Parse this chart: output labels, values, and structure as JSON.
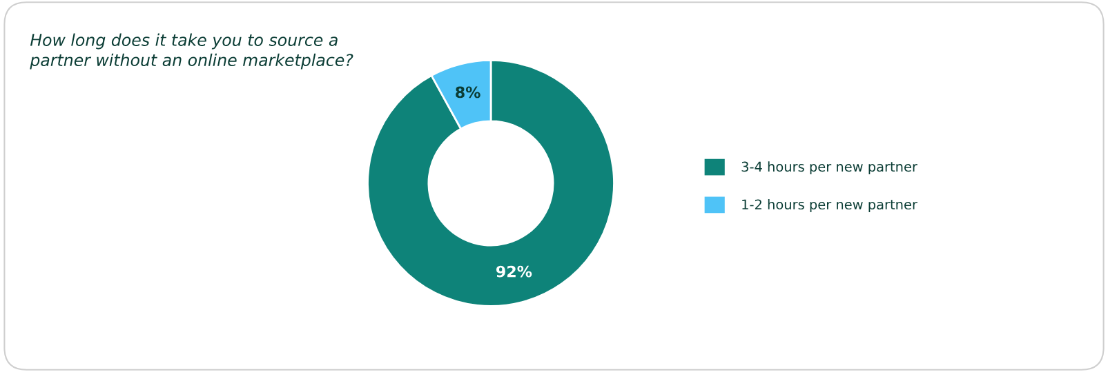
{
  "chart_data": {
    "type": "donut",
    "title": "How long does it take you to source a partner without an online marketplace?",
    "categories": [
      "3-4 hours per new partner",
      "1-2 hours per new partner"
    ],
    "values": [
      92,
      8
    ],
    "colors": [
      "#0e8379",
      "#4fc3f7"
    ],
    "value_labels": [
      "92%",
      "8%"
    ],
    "legend": "right"
  }
}
